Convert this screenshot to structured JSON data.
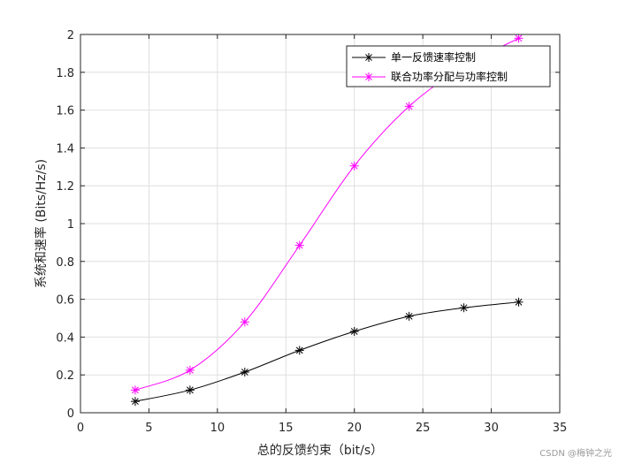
{
  "chart_data": {
    "type": "line",
    "title": "",
    "xlabel": "总的反馈约束（bit/s）",
    "ylabel": "系统和速率 (Bits/Hz/s)",
    "xlim": [
      0,
      35
    ],
    "ylim": [
      0,
      2
    ],
    "xticks": [
      0,
      5,
      10,
      15,
      20,
      25,
      30,
      35
    ],
    "yticks": [
      0,
      0.2,
      0.4,
      0.6,
      0.8,
      1,
      1.2,
      1.4,
      1.6,
      1.8,
      2
    ],
    "xtick_labels": [
      "0",
      "5",
      "10",
      "15",
      "20",
      "25",
      "30",
      "35"
    ],
    "ytick_labels": [
      "0",
      "0.2",
      "0.4",
      "0.6",
      "0.8",
      "1",
      "1.2",
      "1.4",
      "1.6",
      "1.8",
      "2"
    ],
    "grid": true,
    "legend_position": "top-right",
    "series": [
      {
        "name": "单一反馈速率控制",
        "color": "#000000",
        "marker": "asterisk",
        "x": [
          4,
          8,
          12,
          16,
          20,
          24,
          28,
          32
        ],
        "y": [
          0.06,
          0.12,
          0.215,
          0.33,
          0.43,
          0.51,
          0.555,
          0.585
        ]
      },
      {
        "name": "联合功率分配与功率控制",
        "color": "#ff00ff",
        "marker": "asterisk",
        "x": [
          4,
          8,
          12,
          16,
          20,
          24,
          28,
          32
        ],
        "y": [
          0.12,
          0.225,
          0.48,
          0.885,
          1.305,
          1.62,
          1.83,
          1.98
        ]
      }
    ]
  },
  "watermark": "CSDN @梅钟之光"
}
